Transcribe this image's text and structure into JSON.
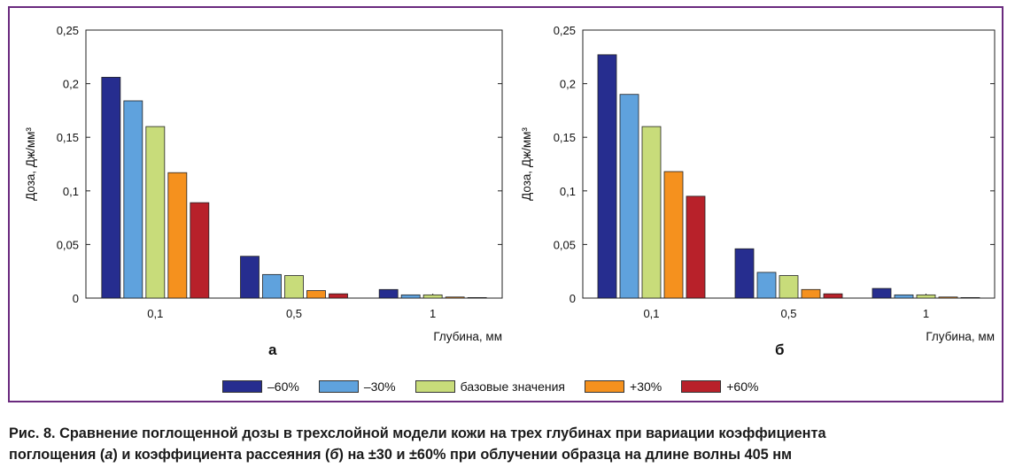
{
  "colors": [
    "#262d8f",
    "#5fa2dd",
    "#c8dc7a",
    "#f5911e",
    "#b8212a"
  ],
  "legend": [
    "–60%",
    "–30%",
    "базовые значения",
    "+30%",
    "+60%"
  ],
  "caption": {
    "line1": "Рис. 8. Сравнение поглощенной дозы в трехслойной модели кожи на трех глубинах при вариации коэффициента",
    "line2_pre": "поглощения (",
    "line2_a": "а",
    "line2_mid": ") и коэффициента рассеяния (",
    "line2_b": "б",
    "line2_post": ") на ±30 и ±60% при облучении образца на длине волны 405 нм"
  },
  "chart_data": [
    {
      "type": "bar",
      "panel_label": "а",
      "categories": [
        "0,1",
        "0,5",
        "1"
      ],
      "xlabel": "Глубина, мм",
      "ylabel": "Доза, Дж/мм³",
      "ylim": [
        0,
        0.25
      ],
      "yticks": [
        0,
        0.05,
        0.1,
        0.15,
        0.2,
        0.25
      ],
      "ytick_labels": [
        "0",
        "0,05",
        "0,1",
        "0,15",
        "0,2",
        "0,25"
      ],
      "series": [
        {
          "name": "–60%",
          "values": [
            0.206,
            0.039,
            0.008
          ]
        },
        {
          "name": "–30%",
          "values": [
            0.184,
            0.022,
            0.003
          ]
        },
        {
          "name": "базовые значения",
          "values": [
            0.16,
            0.021,
            0.003
          ]
        },
        {
          "name": "+30%",
          "values": [
            0.117,
            0.007,
            0.001
          ]
        },
        {
          "name": "+60%",
          "values": [
            0.089,
            0.004,
            0.0005
          ]
        }
      ]
    },
    {
      "type": "bar",
      "panel_label": "б",
      "categories": [
        "0,1",
        "0,5",
        "1"
      ],
      "xlabel": "Глубина, мм",
      "ylabel": "Доза, Дж/мм³",
      "ylim": [
        0,
        0.25
      ],
      "yticks": [
        0,
        0.05,
        0.1,
        0.15,
        0.2,
        0.25
      ],
      "ytick_labels": [
        "0",
        "0,05",
        "0,1",
        "0,15",
        "0,2",
        "0,25"
      ],
      "series": [
        {
          "name": "–60%",
          "values": [
            0.227,
            0.046,
            0.009
          ]
        },
        {
          "name": "–30%",
          "values": [
            0.19,
            0.024,
            0.003
          ]
        },
        {
          "name": "базовые значения",
          "values": [
            0.16,
            0.021,
            0.003
          ]
        },
        {
          "name": "+30%",
          "values": [
            0.118,
            0.008,
            0.001
          ]
        },
        {
          "name": "+60%",
          "values": [
            0.095,
            0.004,
            0.0005
          ]
        }
      ]
    }
  ]
}
